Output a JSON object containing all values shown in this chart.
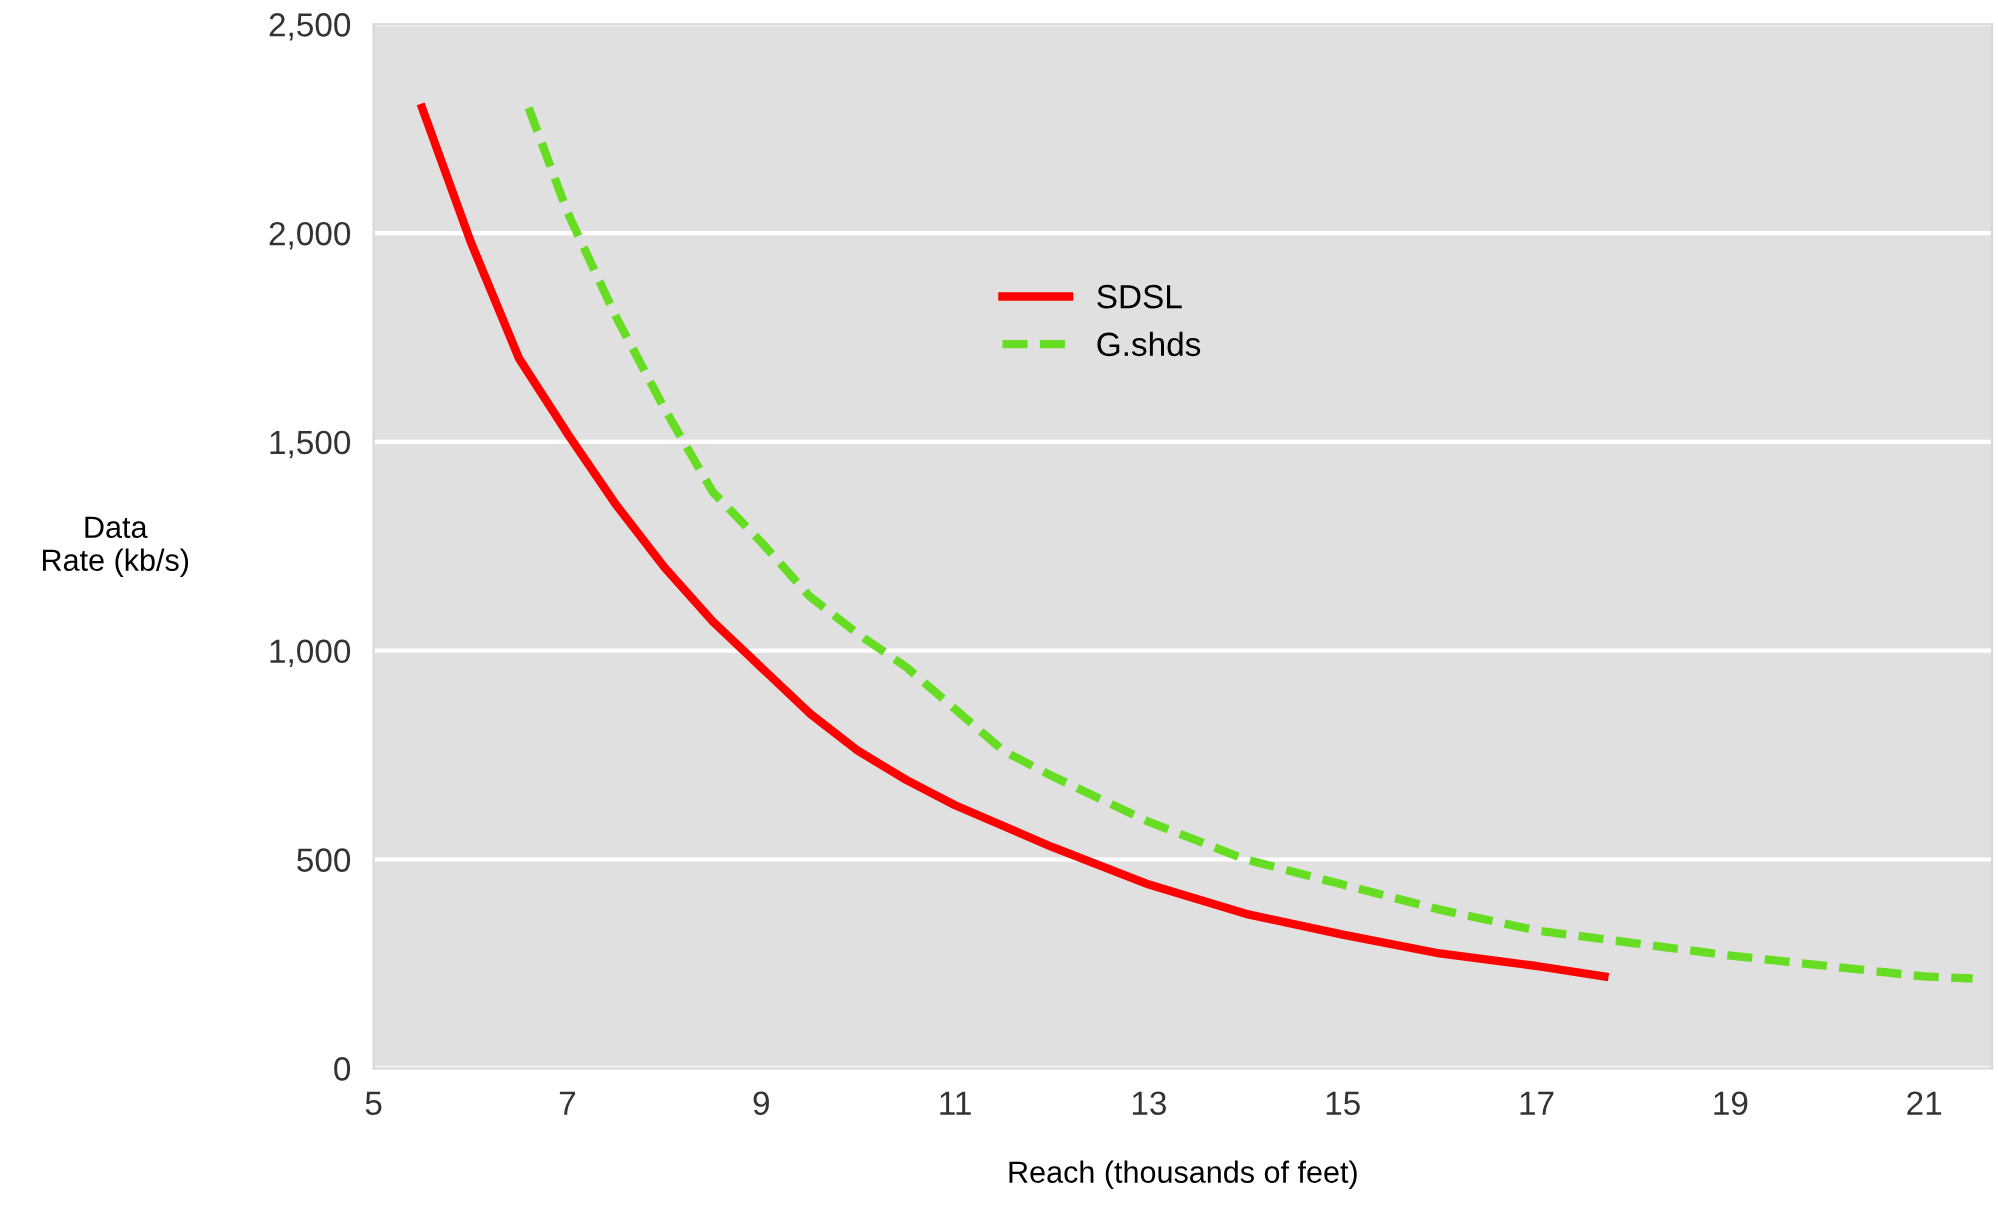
{
  "chart_data": {
    "type": "line",
    "xlabel": "Reach (thousands of feet)",
    "ylabel": "Data\nRate (kb/s)",
    "xlim": [
      5,
      21.7
    ],
    "xticks": [
      5,
      7,
      9,
      11,
      13,
      15,
      17,
      19,
      21
    ],
    "ylim": [
      0,
      2500
    ],
    "yticks": [
      0,
      500,
      {
        "value": 1000,
        "label": "1,000"
      },
      {
        "value": 1500,
        "label": "1,500"
      },
      {
        "value": 2000,
        "label": "2,000"
      },
      {
        "value": 2500,
        "label": "2,500"
      }
    ],
    "grid": "y",
    "legend": "top",
    "marker": "none",
    "series": [
      {
        "name": "SDSL",
        "color": "#ff0000",
        "line_style": "solid",
        "x": [
          5.5,
          6.0,
          6.5,
          7.0,
          7.5,
          8.0,
          8.5,
          9.0,
          9.5,
          10,
          10.5,
          11,
          12,
          13,
          14,
          15,
          16,
          17,
          17.7
        ],
        "values": [
          2300,
          1980,
          1700,
          1520,
          1350,
          1200,
          1070,
          960,
          850,
          760,
          690,
          630,
          530,
          440,
          370,
          320,
          275,
          245,
          220
        ]
      },
      {
        "name": "G.shds",
        "color": "#66dd22",
        "line_style": "dashed",
        "x": [
          6.6,
          7.0,
          7.5,
          8.0,
          8.5,
          9.0,
          9.5,
          10,
          10.5,
          11,
          11.5,
          12,
          13,
          14,
          15,
          16,
          17,
          18,
          19,
          20,
          21,
          21.5
        ],
        "values": [
          2300,
          2050,
          1800,
          1580,
          1380,
          1260,
          1130,
          1040,
          960,
          860,
          760,
          700,
          590,
          500,
          440,
          380,
          330,
          300,
          270,
          245,
          220,
          215
        ]
      }
    ]
  }
}
